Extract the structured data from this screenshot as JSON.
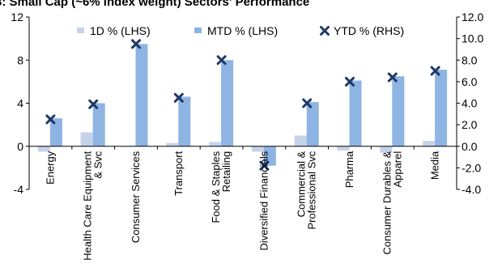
{
  "chart_data": {
    "type": "bar",
    "title": "3: Small Cap (~6% index weight) Sectors' Performance",
    "categories": [
      [
        "Energy"
      ],
      [
        "Health Care Equipment",
        "& Svc"
      ],
      [
        "Consumer Services"
      ],
      [
        "Transport"
      ],
      [
        "Food & Staples",
        "Retailing"
      ],
      [
        "Diversified Financials"
      ],
      [
        "Commercial &",
        "Professional Svc"
      ],
      [
        "Pharma"
      ],
      [
        "Consumer Durables &",
        "Apparel"
      ],
      [
        "Media"
      ]
    ],
    "series": [
      {
        "name": "1D % (LHS)",
        "axis": "left",
        "kind": "bar",
        "color": "#c5d3ea",
        "values": [
          -0.5,
          1.3,
          0.0,
          0.3,
          0.4,
          -0.5,
          1.0,
          -0.4,
          -0.6,
          0.5
        ]
      },
      {
        "name": "MTD % (LHS)",
        "axis": "left",
        "kind": "bar",
        "color": "#8eb4e3",
        "values": [
          2.6,
          4.0,
          9.5,
          4.6,
          8.0,
          -1.8,
          4.1,
          6.1,
          6.5,
          7.1
        ]
      },
      {
        "name": "YTD % (RHS)",
        "axis": "right",
        "kind": "marker",
        "color": "#1f3864",
        "values": [
          2.5,
          3.9,
          9.5,
          4.5,
          8.0,
          -1.8,
          4.0,
          6.0,
          6.4,
          7.0
        ]
      }
    ],
    "left_axis": {
      "ylim": [
        -4,
        12
      ],
      "ticks": [
        "-4",
        "0",
        "4",
        "8",
        "12"
      ]
    },
    "right_axis": {
      "ylim": [
        -4,
        12
      ],
      "ticks": [
        "-4.0",
        "-2.0",
        "0.0",
        "2.0",
        "4.0",
        "6.0",
        "8.0",
        "10.0",
        "12.0"
      ]
    },
    "legend_position": "top",
    "grid": false
  }
}
